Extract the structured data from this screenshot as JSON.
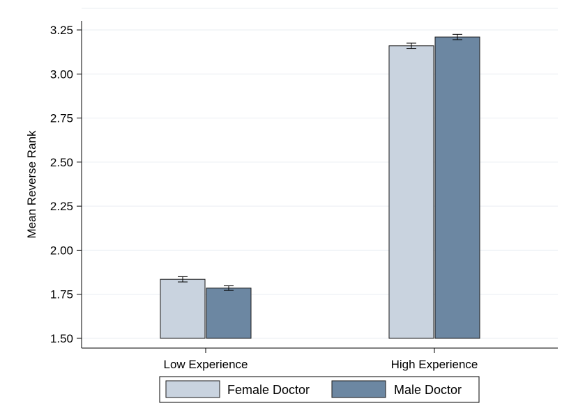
{
  "colors": {
    "female": "#c9d3df",
    "male": "#6c87a2",
    "grid": "#e9eef2",
    "axis": "#000000",
    "background": "#ffffff"
  },
  "chart_data": {
    "type": "bar",
    "title": "",
    "xlabel": "",
    "ylabel": "Mean Reverse Rank",
    "categories": [
      "Low Experience",
      "High Experience"
    ],
    "series": [
      {
        "name": "Female Doctor",
        "values": [
          1.835,
          3.16
        ],
        "ci_low": [
          1.82,
          3.145
        ],
        "ci_high": [
          1.85,
          3.175
        ]
      },
      {
        "name": "Male Doctor",
        "values": [
          1.785,
          3.21
        ],
        "ci_low": [
          1.772,
          3.195
        ],
        "ci_high": [
          1.798,
          3.225
        ]
      }
    ],
    "yticks": [
      "1.50",
      "1.75",
      "2.00",
      "2.25",
      "2.50",
      "2.75",
      "3.00",
      "3.25"
    ],
    "ylim": [
      1.5,
      3.3
    ],
    "grid": true,
    "legend": "bottom"
  }
}
